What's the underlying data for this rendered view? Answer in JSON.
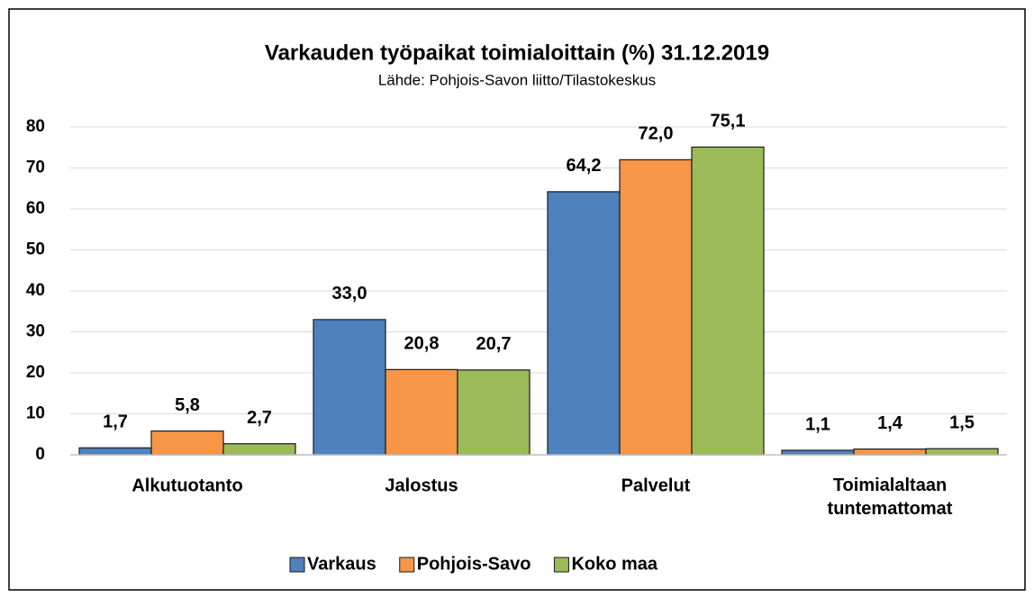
{
  "chart_data": {
    "type": "bar",
    "title": "Varkauden työpaikat toimialoittain (%) 31.12.2019",
    "subtitle": "Lähde: Pohjois-Savon liitto/Tilastokeskus",
    "categories": [
      "Alkutuotanto",
      "Jalostus",
      "Palvelut",
      "Toimialaltaan tuntemattomat"
    ],
    "series": [
      {
        "name": "Varkaus",
        "color": "#4f81bd",
        "values": [
          1.7,
          33,
          64.2,
          1.1
        ],
        "value_labels": [
          "1,7",
          "33,0",
          "64,2",
          "1,1"
        ]
      },
      {
        "name": "Pohjois-Savo",
        "color": "#f79646",
        "values": [
          5.8,
          20.8,
          72,
          1.4
        ],
        "value_labels": [
          "5,8",
          "20,8",
          "72,0",
          "1,4"
        ]
      },
      {
        "name": "Koko maa",
        "color": "#9bbb59",
        "values": [
          2.7,
          20.7,
          75.1,
          1.5
        ],
        "value_labels": [
          "2,7",
          "20,7",
          "75,1",
          "1,5"
        ]
      }
    ],
    "ylim": [
      0,
      80
    ],
    "yticks": [
      0,
      10,
      20,
      30,
      40,
      50,
      60,
      70,
      80
    ],
    "grid": true,
    "legend": "bottom"
  }
}
